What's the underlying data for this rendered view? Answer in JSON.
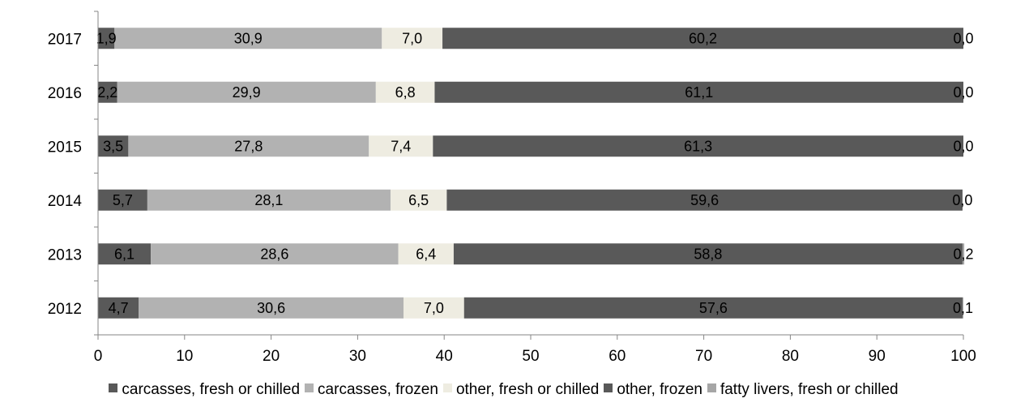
{
  "chart_data": {
    "type": "bar",
    "orientation": "horizontal",
    "stacked": true,
    "categories": [
      "2017",
      "2016",
      "2015",
      "2014",
      "2013",
      "2012"
    ],
    "series": [
      {
        "name": "carcasses, fresh or chilled",
        "color": "#595959",
        "values": [
          1.9,
          2.2,
          3.5,
          5.7,
          6.1,
          4.7
        ],
        "labels": [
          "1,9",
          "2,2",
          "3,5",
          "5,7",
          "6,1",
          "4,7"
        ]
      },
      {
        "name": "carcasses, frozen",
        "color": "#b2b2b2",
        "values": [
          30.9,
          29.9,
          27.8,
          28.1,
          28.6,
          30.6
        ],
        "labels": [
          "30,9",
          "29,9",
          "27,8",
          "28,1",
          "28,6",
          "30,6"
        ]
      },
      {
        "name": "other, fresh or chilled",
        "color": "#eeece1",
        "values": [
          7.0,
          6.8,
          7.4,
          6.5,
          6.4,
          7.0
        ],
        "labels": [
          "7,0",
          "6,8",
          "7,4",
          "6,5",
          "6,4",
          "7,0"
        ]
      },
      {
        "name": "other, frozen",
        "color": "#595959",
        "values": [
          60.2,
          61.1,
          61.3,
          59.6,
          58.8,
          57.6
        ],
        "labels": [
          "60,2",
          "61,1",
          "61,3",
          "59,6",
          "58,8",
          "57,6"
        ]
      },
      {
        "name": "fatty livers, fresh or chilled",
        "color": "#a6a6a6",
        "values": [
          0.0,
          0.0,
          0.0,
          0.0,
          0.2,
          0.1
        ],
        "labels": [
          "0,0",
          "0,0",
          "0,0",
          "0,0",
          "0,2",
          "0,1"
        ]
      }
    ],
    "xlim": [
      0,
      100
    ],
    "xticks": [
      0,
      10,
      20,
      30,
      40,
      50,
      60,
      70,
      80,
      90,
      100
    ],
    "grid": false,
    "legend_position": "bottom",
    "title": "",
    "xlabel": "",
    "ylabel": ""
  }
}
